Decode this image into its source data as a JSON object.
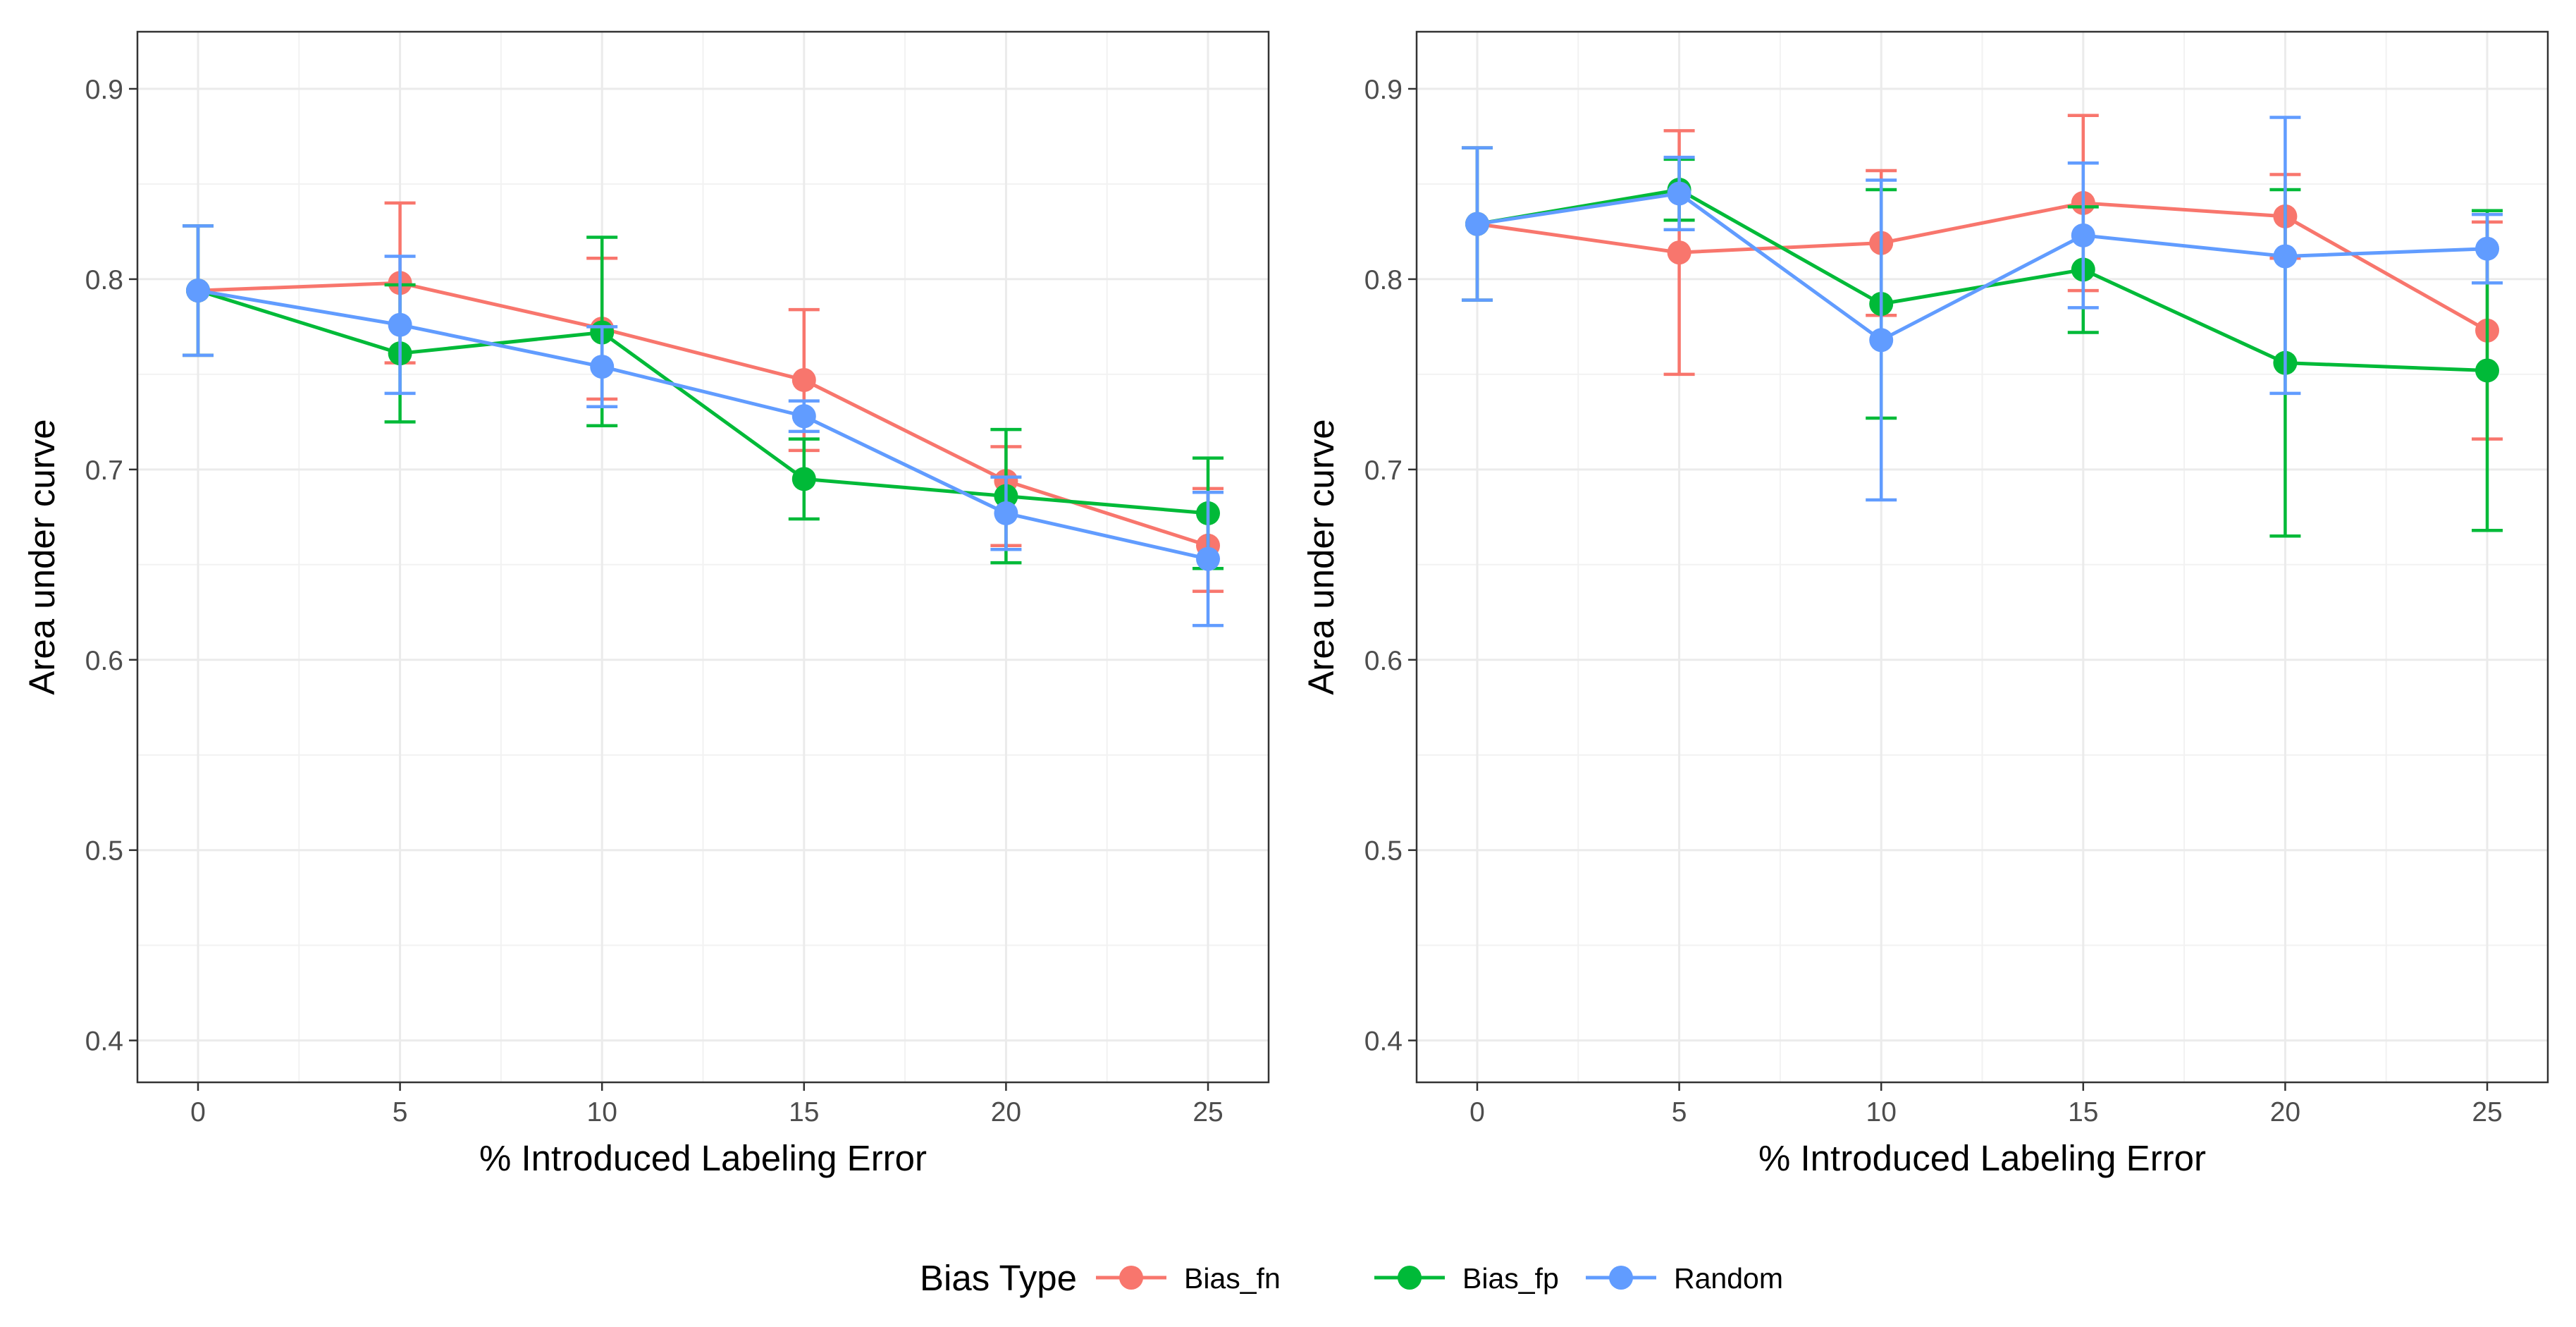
{
  "legend": {
    "title": "Bias Type",
    "entries": [
      {
        "name": "Bias_fn",
        "color": "#F8766D"
      },
      {
        "name": "Bias_fp",
        "color": "#00BA38"
      },
      {
        "name": "Random",
        "color": "#619CFF"
      }
    ]
  },
  "chart_data": [
    {
      "type": "line",
      "xlabel": "% Introduced Labeling Error",
      "ylabel": "Area under curve",
      "x": [
        0,
        5,
        10,
        15,
        20,
        25
      ],
      "xticks": [
        "0",
        "5",
        "10",
        "15",
        "20",
        "25"
      ],
      "yticks": [
        "0.4",
        "0.5",
        "0.6",
        "0.7",
        "0.8",
        "0.9"
      ],
      "xlim": [
        -1.5,
        26.5
      ],
      "ylim": [
        0.378,
        0.93
      ],
      "series": [
        {
          "name": "Bias_fn",
          "color": "#F8766D",
          "values": [
            0.794,
            0.798,
            0.774,
            0.747,
            0.694,
            0.66
          ],
          "lower": [
            0.76,
            0.756,
            0.737,
            0.71,
            0.66,
            0.636
          ],
          "upper": [
            0.828,
            0.84,
            0.811,
            0.784,
            0.712,
            0.69
          ]
        },
        {
          "name": "Bias_fp",
          "color": "#00BA38",
          "values": [
            0.794,
            0.761,
            0.772,
            0.695,
            0.686,
            0.677
          ],
          "lower": [
            0.76,
            0.725,
            0.723,
            0.674,
            0.651,
            0.648
          ],
          "upper": [
            0.828,
            0.797,
            0.822,
            0.716,
            0.721,
            0.706
          ]
        },
        {
          "name": "Random",
          "color": "#619CFF",
          "values": [
            0.794,
            0.776,
            0.754,
            0.728,
            0.677,
            0.653
          ],
          "lower": [
            0.76,
            0.74,
            0.733,
            0.72,
            0.658,
            0.618
          ],
          "upper": [
            0.828,
            0.812,
            0.775,
            0.736,
            0.696,
            0.688
          ]
        }
      ]
    },
    {
      "type": "line",
      "xlabel": "% Introduced Labeling Error",
      "ylabel": "Area under curve",
      "x": [
        0,
        5,
        10,
        15,
        20,
        25
      ],
      "xticks": [
        "0",
        "5",
        "10",
        "15",
        "20",
        "25"
      ],
      "yticks": [
        "0.4",
        "0.5",
        "0.6",
        "0.7",
        "0.8",
        "0.9"
      ],
      "xlim": [
        -1.5,
        26.5
      ],
      "ylim": [
        0.378,
        0.93
      ],
      "series": [
        {
          "name": "Bias_fn",
          "color": "#F8766D",
          "values": [
            0.829,
            0.814,
            0.819,
            0.84,
            0.833,
            0.773
          ],
          "lower": [
            0.789,
            0.75,
            0.781,
            0.794,
            0.811,
            0.716
          ],
          "upper": [
            0.869,
            0.878,
            0.857,
            0.886,
            0.855,
            0.83
          ]
        },
        {
          "name": "Bias_fp",
          "color": "#00BA38",
          "values": [
            0.829,
            0.847,
            0.787,
            0.805,
            0.756,
            0.752
          ],
          "lower": [
            0.789,
            0.831,
            0.727,
            0.772,
            0.665,
            0.668
          ],
          "upper": [
            0.869,
            0.863,
            0.847,
            0.838,
            0.847,
            0.836
          ]
        },
        {
          "name": "Random",
          "color": "#619CFF",
          "values": [
            0.829,
            0.845,
            0.768,
            0.823,
            0.812,
            0.816
          ],
          "lower": [
            0.789,
            0.826,
            0.684,
            0.785,
            0.74,
            0.798
          ],
          "upper": [
            0.869,
            0.864,
            0.852,
            0.861,
            0.885,
            0.834
          ]
        }
      ]
    }
  ]
}
